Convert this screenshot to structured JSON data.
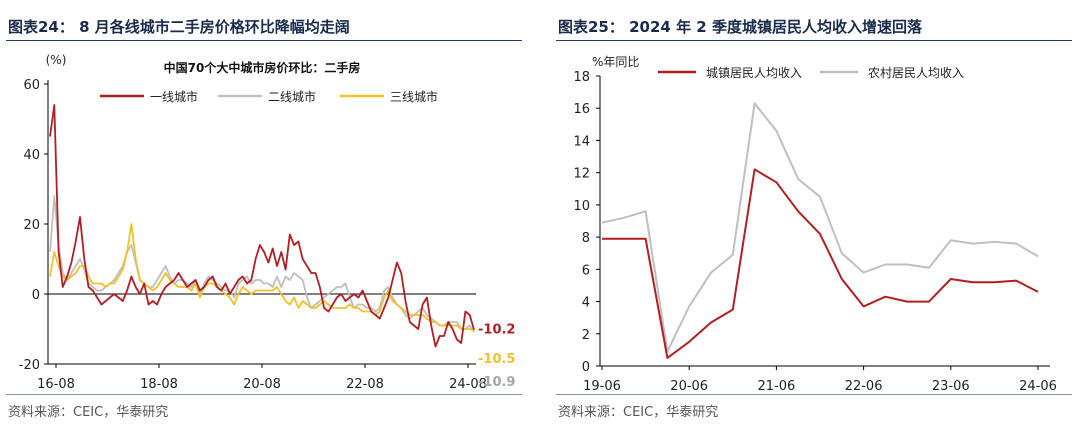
{
  "charts": {
    "left": {
      "figure_title": "图表24：  8 月各线城市二手房价格环比降幅均走阔",
      "source": "资料来源：CEIC，华泰研究",
      "inner_title": "中国70个大中城市房价环比：二手房",
      "unit_label": "(%)",
      "end_labels": [
        "-10.2",
        "-10.5",
        "-10.9"
      ]
    },
    "right": {
      "figure_title": "图表25：  2024 年 2 季度城镇居民人均收入增速回落",
      "source": "资料来源：CEIC，华泰研究",
      "unit_label": "%年同比"
    },
    "colors": {
      "red": "#b01f24",
      "gray": "#bfbfbf",
      "yellow": "#f2c12e",
      "endgray": "#a6a6a6"
    }
  },
  "chart_data": [
    {
      "type": "line",
      "title": "中国70个大中城市房价环比：二手房",
      "ylabel": "(%)",
      "ylim": [
        -20,
        60
      ],
      "yticks": [
        -20,
        0,
        20,
        40,
        60
      ],
      "x_ticks": [
        "16-08",
        "18-08",
        "20-08",
        "22-08",
        "24-08"
      ],
      "grid": false,
      "legend": "top-center",
      "series": [
        {
          "name": "一线城市",
          "color": "#b01f24",
          "values": [
            45,
            54,
            12,
            2,
            5,
            9,
            15,
            22,
            10,
            2,
            1,
            -1,
            -3,
            -2,
            -1,
            0,
            -1,
            -2,
            1,
            5,
            2,
            0,
            3,
            -3,
            -2,
            -3,
            0,
            2,
            3,
            4,
            6,
            4,
            2,
            3,
            4,
            1,
            2,
            4,
            5,
            2,
            1,
            3,
            0,
            2,
            4,
            5,
            3,
            4,
            10,
            14,
            12,
            9,
            13,
            8,
            12,
            7,
            17,
            14,
            15,
            10,
            8,
            6,
            6,
            2,
            -4,
            -5,
            -3,
            -1,
            0,
            -2,
            -1,
            0,
            -1,
            1,
            -2,
            -5,
            -6,
            -7,
            -4,
            -1,
            4,
            9,
            6,
            -2,
            -8,
            -9,
            -10,
            -3,
            -1,
            -9,
            -15,
            -12,
            -12,
            -8,
            -10,
            -13,
            -14,
            -5,
            -6,
            -10.2
          ]
        },
        {
          "name": "二线城市",
          "color": "#bfbfbf",
          "values": [
            12,
            28,
            14,
            6,
            4,
            6,
            8,
            10,
            7,
            3,
            2,
            1,
            1,
            2,
            3,
            4,
            6,
            8,
            12,
            14,
            9,
            4,
            3,
            2,
            2,
            4,
            6,
            8,
            5,
            3,
            4,
            4,
            3,
            2,
            4,
            0,
            3,
            5,
            4,
            3,
            2,
            1,
            1,
            -1,
            3,
            4,
            5,
            3,
            4,
            4,
            3,
            3,
            2,
            5,
            2,
            5,
            4,
            6,
            5,
            4,
            -1,
            -4,
            -3,
            -2,
            -1,
            0,
            1,
            2,
            2,
            3,
            -1,
            -4,
            -3,
            -3,
            -4,
            -4,
            -5,
            -4,
            1,
            2,
            -1,
            -3,
            -4,
            -6,
            -7,
            -6,
            -5,
            -4,
            -6,
            -7,
            -8,
            -9,
            -9,
            -8,
            -8,
            -8,
            -10,
            -10,
            -9,
            -10.9
          ]
        },
        {
          "name": "三线城市",
          "color": "#f2c12e",
          "values": [
            5,
            12,
            8,
            5,
            4,
            5,
            6,
            8,
            8,
            5,
            3,
            3,
            3,
            2,
            3,
            3,
            5,
            7,
            12,
            20,
            10,
            4,
            3,
            2,
            1,
            2,
            4,
            6,
            4,
            3,
            2,
            2,
            2,
            1,
            3,
            -1,
            2,
            3,
            3,
            2,
            1,
            0,
            -1,
            -3,
            0,
            2,
            1,
            0,
            1,
            1,
            1,
            1,
            1,
            2,
            0,
            -2,
            -3,
            -1,
            -4,
            -2,
            -3,
            -4,
            -4,
            -3,
            -2,
            -3,
            -4,
            -4,
            -4,
            -4,
            -3,
            -4,
            -4,
            -5,
            -5,
            -5,
            -6,
            -5,
            -1,
            1,
            -2,
            -3,
            -4,
            -5,
            -6,
            -6,
            -6,
            -6,
            -7,
            -8,
            -8,
            -9,
            -9,
            -9,
            -9,
            -9,
            -10,
            -10,
            -10,
            -10.5
          ]
        }
      ]
    },
    {
      "type": "line",
      "title": "",
      "ylabel": "%年同比",
      "ylim": [
        0,
        18
      ],
      "yticks": [
        0,
        2,
        4,
        6,
        8,
        10,
        12,
        14,
        16,
        18
      ],
      "categories": [
        "19-06",
        "19-09",
        "19-12",
        "20-03",
        "20-06",
        "20-09",
        "20-12",
        "21-03",
        "21-06",
        "21-09",
        "21-12",
        "22-03",
        "22-06",
        "22-09",
        "22-12",
        "23-03",
        "23-06",
        "23-09",
        "23-12",
        "24-03",
        "24-06"
      ],
      "x_ticks": [
        "19-06",
        "20-06",
        "21-06",
        "22-06",
        "23-06",
        "24-06"
      ],
      "grid": false,
      "legend": "top",
      "series": [
        {
          "name": "城镇居民人均收入",
          "color": "#b01f24",
          "values": [
            7.9,
            7.9,
            7.9,
            0.5,
            1.5,
            2.7,
            3.5,
            12.2,
            11.4,
            9.6,
            8.2,
            5.4,
            3.7,
            4.3,
            4.0,
            4.0,
            5.4,
            5.2,
            5.2,
            5.3,
            4.6
          ]
        },
        {
          "name": "农村居民人均收入",
          "color": "#bfbfbf",
          "values": [
            8.9,
            9.2,
            9.6,
            0.9,
            3.7,
            5.8,
            6.9,
            16.3,
            14.6,
            11.6,
            10.5,
            7.0,
            5.8,
            6.3,
            6.3,
            6.1,
            7.8,
            7.6,
            7.7,
            7.6,
            6.8
          ]
        }
      ]
    }
  ]
}
